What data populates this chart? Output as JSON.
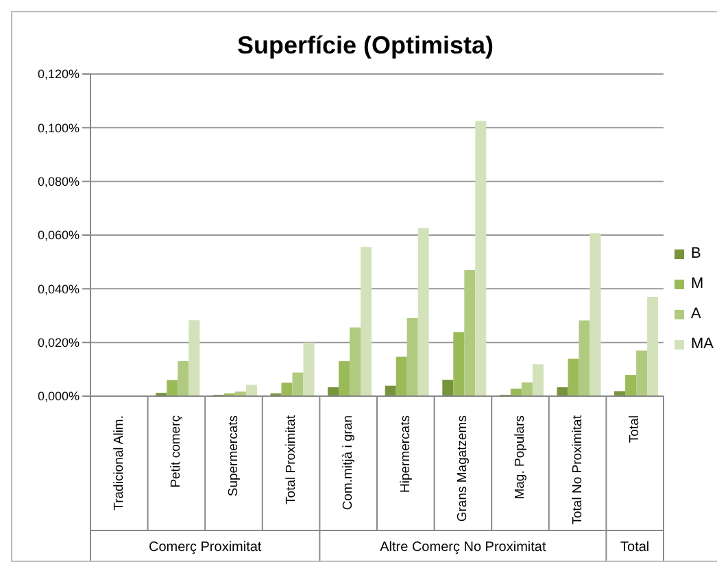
{
  "chart_data": {
    "type": "bar",
    "title": "Superfície (Optimista)",
    "categories": [
      "Tradicional Alim.",
      "Petit comerç",
      "Supermercats",
      "Total Proximitat",
      "Com.mitjà i gran",
      "Hipermercats",
      "Grans Magatzems",
      "Mag. Populars",
      "Total No Proximitat",
      "Total"
    ],
    "series": [
      {
        "name": "B",
        "color": "#77933c",
        "values": [
          0,
          0.0012,
          0.0005,
          0.001,
          0.0033,
          0.0039,
          0.0061,
          0.0005,
          0.0033,
          0.0018
        ]
      },
      {
        "name": "M",
        "color": "#9bbb59",
        "values": [
          0,
          0.006,
          0.001,
          0.005,
          0.013,
          0.0147,
          0.0239,
          0.0028,
          0.0139,
          0.0079
        ]
      },
      {
        "name": "A",
        "color": "#b0cb80",
        "values": [
          0,
          0.013,
          0.0017,
          0.0088,
          0.0256,
          0.0291,
          0.047,
          0.0051,
          0.0282,
          0.017
        ]
      },
      {
        "name": "MA",
        "color": "#d3e2bb",
        "values": [
          0,
          0.0283,
          0.0042,
          0.02,
          0.0556,
          0.0626,
          0.1025,
          0.0119,
          0.0607,
          0.037
        ]
      }
    ],
    "ylim": [
      0,
      0.12
    ],
    "yticks": [
      {
        "value": 0,
        "label": "0,000%"
      },
      {
        "value": 0.02,
        "label": "0,020%"
      },
      {
        "value": 0.04,
        "label": "0,040%"
      },
      {
        "value": 0.06,
        "label": "0,060%"
      },
      {
        "value": 0.08,
        "label": "0,080%"
      },
      {
        "value": 0.1,
        "label": "0,100%"
      },
      {
        "value": 0.12,
        "label": "0,120%"
      }
    ],
    "grid": "y",
    "legend": "right",
    "annotations": [
      "Comerç Proximitat",
      "Altre Comerç No Proximitat",
      "Total"
    ]
  }
}
